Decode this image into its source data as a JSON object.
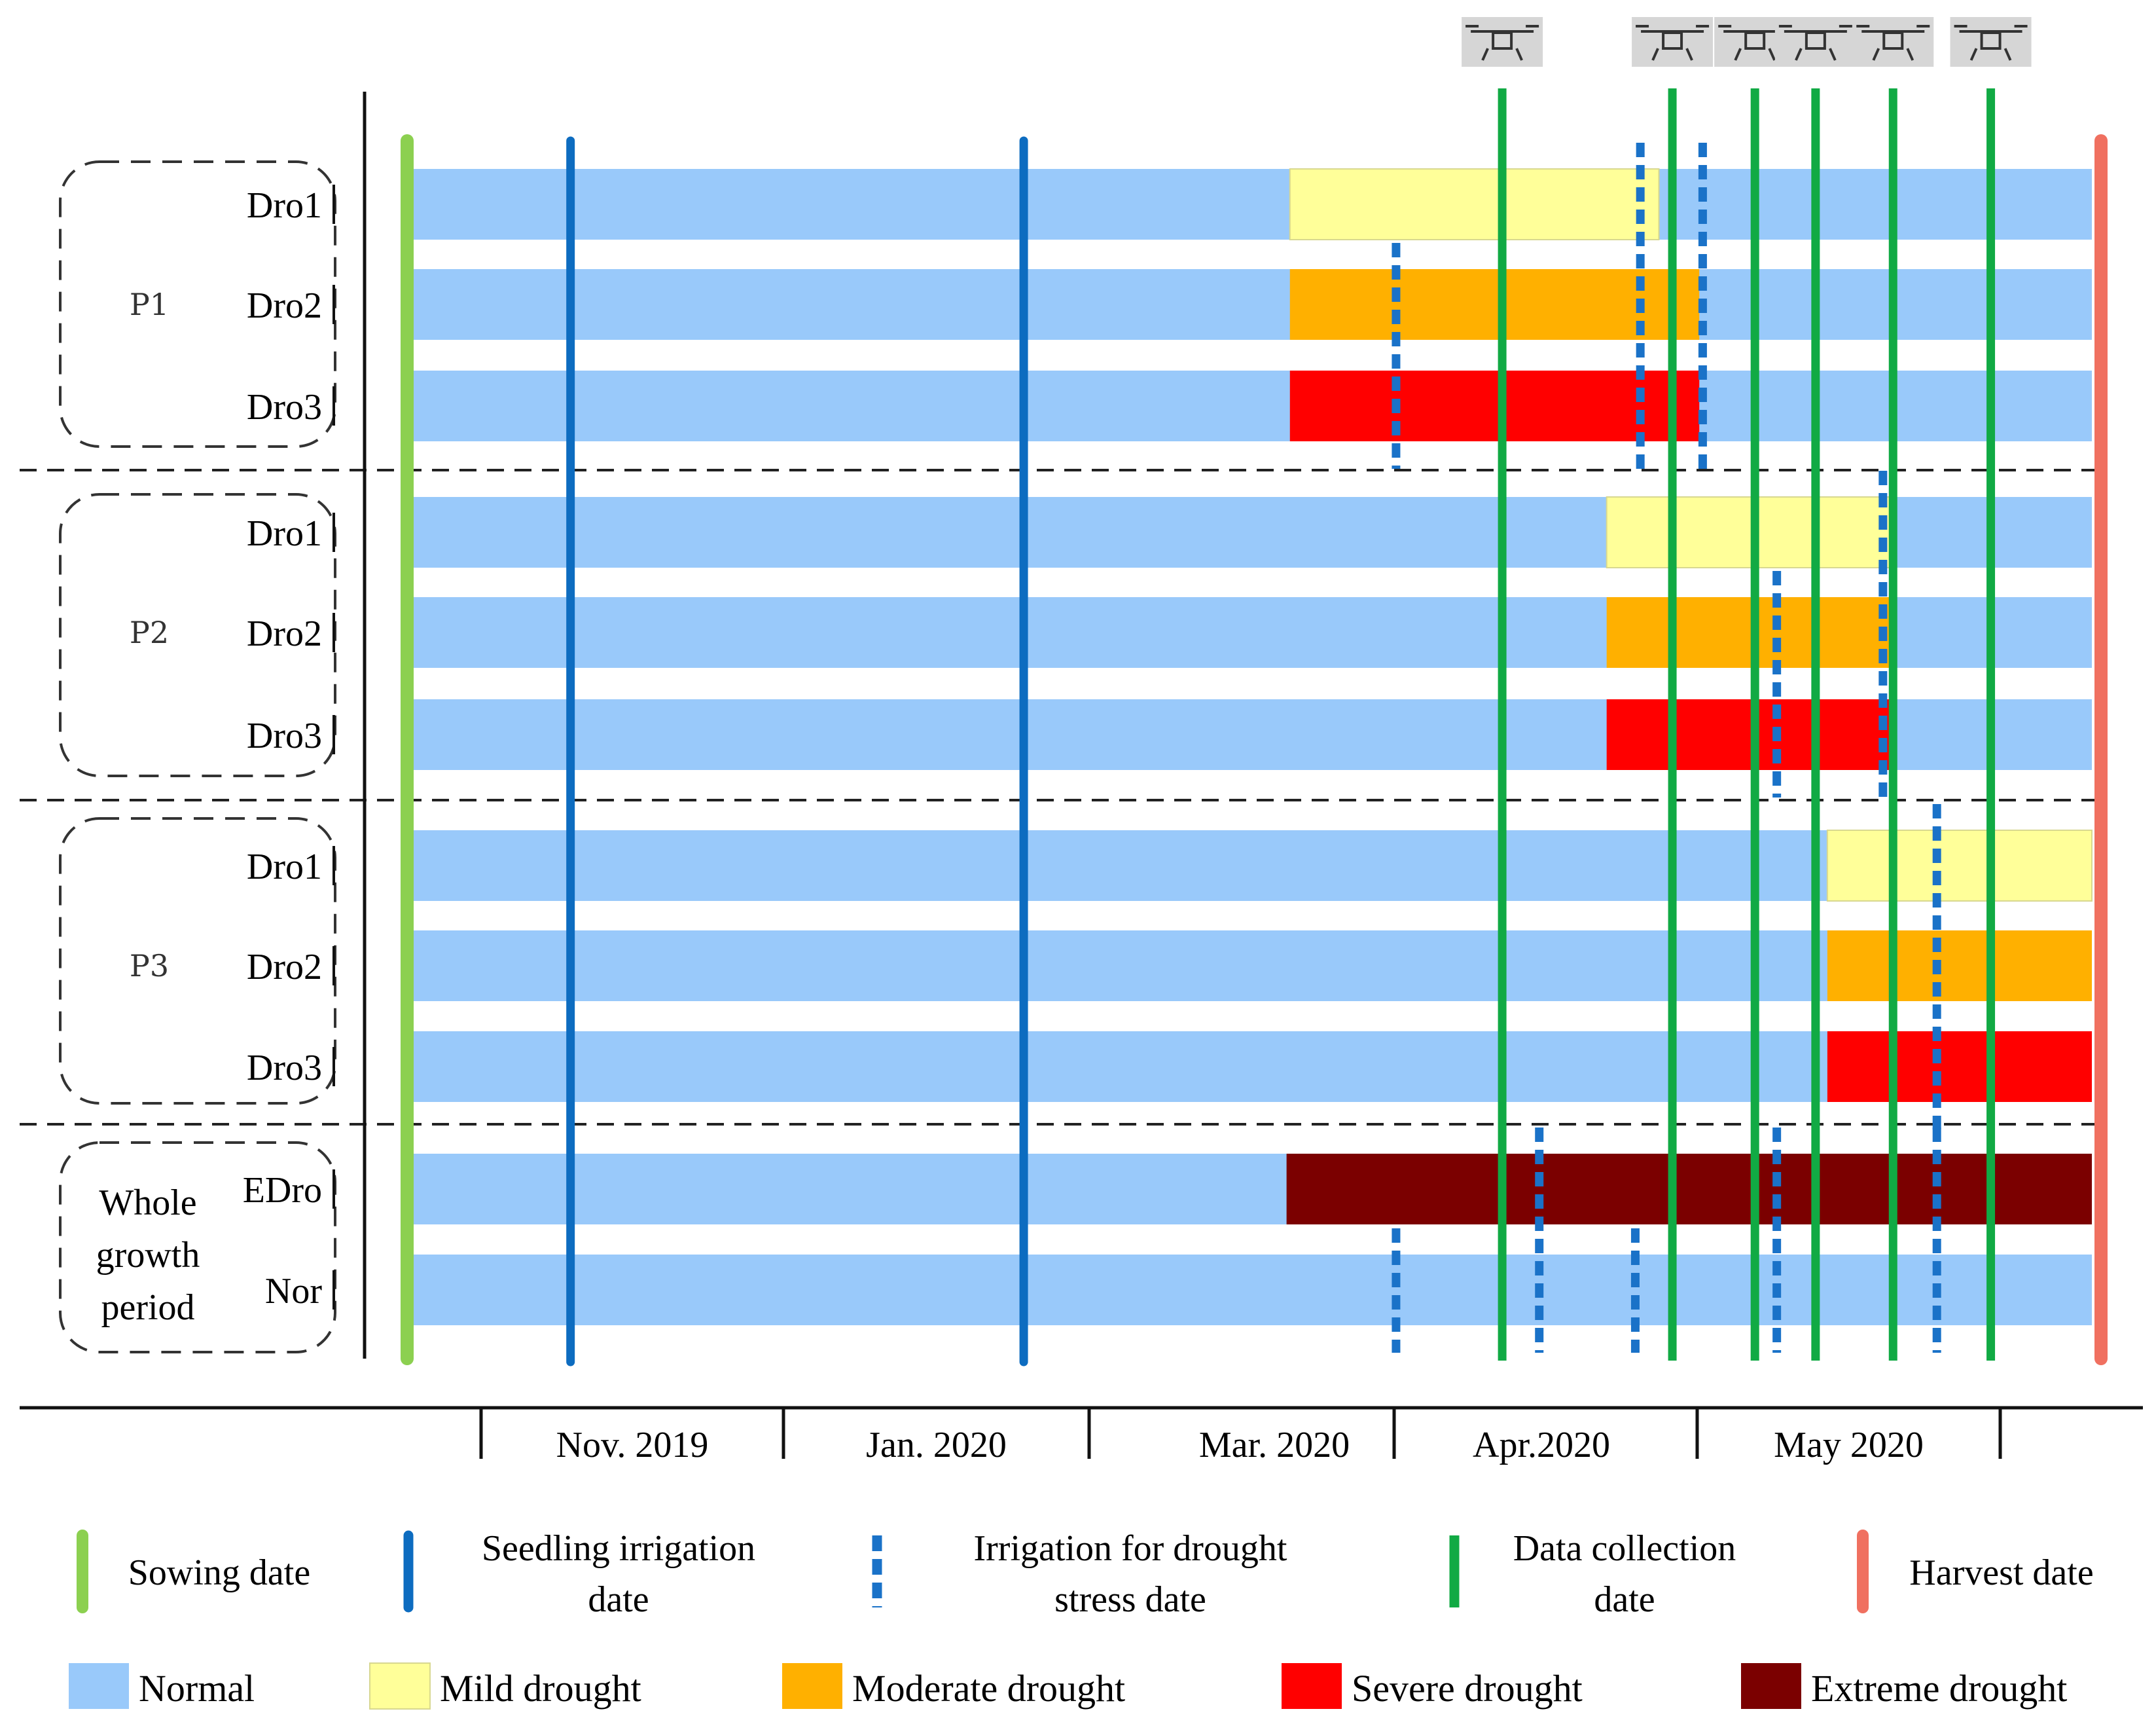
{
  "groups": [
    {
      "label": "P1",
      "rows": [
        {
          "label": "Dro1",
          "level": "mild",
          "start": 0.524,
          "end": 0.743
        },
        {
          "label": "Dro2",
          "level": "moderate",
          "start": 0.524,
          "end": 0.767
        },
        {
          "label": "Dro3",
          "level": "severe",
          "start": 0.524,
          "end": 0.767
        }
      ]
    },
    {
      "label": "P2",
      "rows": [
        {
          "label": "Dro1",
          "level": "mild",
          "start": 0.712,
          "end": 0.88
        },
        {
          "label": "Dro2",
          "level": "moderate",
          "start": 0.712,
          "end": 0.88
        },
        {
          "label": "Dro3",
          "level": "severe",
          "start": 0.712,
          "end": 0.88
        }
      ]
    },
    {
      "label": "P3",
      "rows": [
        {
          "label": "Dro1",
          "level": "mild",
          "start": 0.843,
          "end": 1.0
        },
        {
          "label": "Dro2",
          "level": "moderate",
          "start": 0.843,
          "end": 1.0
        },
        {
          "label": "Dro3",
          "level": "severe",
          "start": 0.843,
          "end": 1.0
        }
      ]
    },
    {
      "label_lines": [
        "Whole",
        "growth",
        "period"
      ],
      "rows": [
        {
          "label": "EDro",
          "level": "extreme",
          "start": 0.522,
          "end": 1.0
        },
        {
          "label": "Nor",
          "level": null
        }
      ]
    }
  ],
  "axis": {
    "months": [
      "Nov. 2019",
      "Jan. 2020",
      "Mar. 2020",
      "Apr.2020",
      "May 2020"
    ]
  },
  "events": {
    "sowing": 0.0,
    "harvest": 1.0,
    "seedling_irrigation": [
      0.097,
      0.366
    ],
    "data_collection": [
      0.65,
      0.751,
      0.8,
      0.836,
      0.882,
      0.94
    ],
    "drought_irrigation": [
      {
        "t": 0.587,
        "rows": [
          1,
          2
        ]
      },
      {
        "t": 0.732,
        "rows": [
          0,
          1,
          2
        ]
      },
      {
        "t": 0.769,
        "rows": [
          0,
          1,
          2
        ]
      },
      {
        "t": 0.813,
        "rows": [
          4,
          5
        ]
      },
      {
        "t": 0.876,
        "rows": [
          3,
          4,
          5
        ]
      },
      {
        "t": 0.908,
        "rows": [
          6,
          7,
          8
        ]
      },
      {
        "t": 0.587,
        "rows": [
          10
        ]
      },
      {
        "t": 0.672,
        "rows": [
          9,
          10
        ]
      },
      {
        "t": 0.729,
        "rows": [
          10
        ]
      },
      {
        "t": 0.813,
        "rows": [
          9,
          10
        ]
      },
      {
        "t": 0.908,
        "rows": [
          9,
          10
        ]
      }
    ],
    "drone_icon": "drone-icon"
  },
  "legend": {
    "events": [
      {
        "key": "sowing",
        "label_lines": [
          "Sowing date"
        ]
      },
      {
        "key": "seedling",
        "label_lines": [
          "Seedling irrigation",
          "date"
        ]
      },
      {
        "key": "drought_irrigation",
        "label_lines": [
          "Irrigation for drought",
          "stress date"
        ]
      },
      {
        "key": "data_collection",
        "label_lines": [
          "Data collection",
          "date"
        ]
      },
      {
        "key": "harvest",
        "label_lines": [
          "Harvest date"
        ]
      }
    ],
    "levels": [
      {
        "key": "normal",
        "label": "Normal"
      },
      {
        "key": "mild",
        "label": "Mild drought"
      },
      {
        "key": "moderate",
        "label": "Moderate drought"
      },
      {
        "key": "severe",
        "label": "Severe drought"
      },
      {
        "key": "extreme",
        "label": "Extreme drought"
      }
    ]
  },
  "colors": {
    "normal": "#99c9fa",
    "mild": "#ffff99",
    "moderate": "#ffb000",
    "severe": "#ff0000",
    "extreme": "#7b0000",
    "sowing": "#8cd050",
    "seedling": "#0d6cc0",
    "drought_irrigation": "#1a72c8",
    "data_collection": "#11aa44",
    "harvest": "#f07060"
  }
}
